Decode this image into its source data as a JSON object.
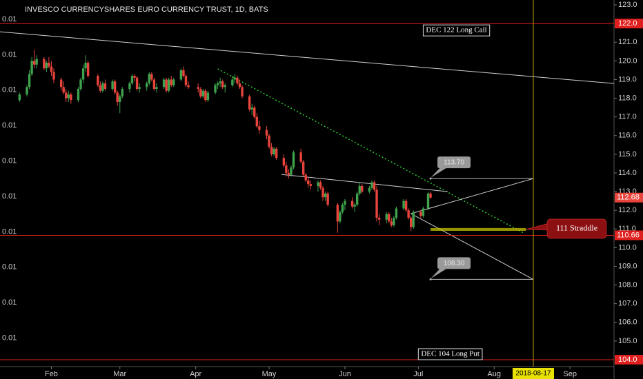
{
  "chart_data": {
    "type": "candlestick",
    "title": "INVESCO CURRENCYSHARES EURO CURRENCY TRUST, 1D, BATS",
    "xlim": [
      "2018-01-11",
      "2018-09-19"
    ],
    "ylim": [
      103.63,
      123.26
    ],
    "xticks": [
      {
        "value": "2018-02-01",
        "label": "Feb"
      },
      {
        "value": "2018-03-01",
        "label": "Mar"
      },
      {
        "value": "2018-04-01",
        "label": "Apr"
      },
      {
        "value": "2018-05-01",
        "label": "May"
      },
      {
        "value": "2018-06-01",
        "label": "Jun"
      },
      {
        "value": "2018-07-01",
        "label": "Jul"
      },
      {
        "value": "2018-08-01",
        "label": "Aug"
      },
      {
        "value": "2018-09-01",
        "label": "Sep"
      }
    ],
    "yticks": [
      {
        "value": 105,
        "label": "105.0"
      },
      {
        "value": 106,
        "label": "106.0"
      },
      {
        "value": 107,
        "label": "107.0"
      },
      {
        "value": 108,
        "label": "108.0"
      },
      {
        "value": 109,
        "label": "109.0"
      },
      {
        "value": 110,
        "label": "110.0"
      },
      {
        "value": 111,
        "label": "111.0"
      },
      {
        "value": 112,
        "label": "112.0"
      },
      {
        "value": 113,
        "label": "113.0"
      },
      {
        "value": 114,
        "label": "114.0"
      },
      {
        "value": 115,
        "label": "115.0"
      },
      {
        "value": 116,
        "label": "116.0"
      },
      {
        "value": 117,
        "label": "117.0"
      },
      {
        "value": 118,
        "label": "118.0"
      },
      {
        "value": 119,
        "label": "119.0"
      },
      {
        "value": 120,
        "label": "120.0"
      },
      {
        "value": 121,
        "label": "121.0"
      },
      {
        "value": 123,
        "label": "123.0"
      }
    ],
    "left_axis_labels": [
      "0.01",
      "0.01",
      "0.01",
      "0.01",
      "0.01",
      "0.01",
      "0.01",
      "0.01",
      "0.01",
      "0.01"
    ],
    "up_color": "#3fa34d",
    "down_color": "#e8443c",
    "x": [
      "2018-01-19",
      "2018-01-22",
      "2018-01-23",
      "2018-01-24",
      "2018-01-25",
      "2018-01-26",
      "2018-01-29",
      "2018-01-30",
      "2018-01-31",
      "2018-02-01",
      "2018-02-02",
      "2018-02-05",
      "2018-02-06",
      "2018-02-07",
      "2018-02-08",
      "2018-02-09",
      "2018-02-12",
      "2018-02-13",
      "2018-02-14",
      "2018-02-15",
      "2018-02-16",
      "2018-02-20",
      "2018-02-21",
      "2018-02-22",
      "2018-02-23",
      "2018-02-26",
      "2018-02-27",
      "2018-02-28",
      "2018-03-01",
      "2018-03-02",
      "2018-03-05",
      "2018-03-06",
      "2018-03-07",
      "2018-03-08",
      "2018-03-09",
      "2018-03-12",
      "2018-03-13",
      "2018-03-14",
      "2018-03-15",
      "2018-03-16",
      "2018-03-19",
      "2018-03-20",
      "2018-03-21",
      "2018-03-22",
      "2018-03-23",
      "2018-03-26",
      "2018-03-27",
      "2018-03-28",
      "2018-03-29",
      "2018-04-02",
      "2018-04-03",
      "2018-04-04",
      "2018-04-05",
      "2018-04-06",
      "2018-04-09",
      "2018-04-10",
      "2018-04-11",
      "2018-04-12",
      "2018-04-13",
      "2018-04-16",
      "2018-04-17",
      "2018-04-18",
      "2018-04-19",
      "2018-04-20",
      "2018-04-23",
      "2018-04-24",
      "2018-04-25",
      "2018-04-26",
      "2018-04-27",
      "2018-04-30",
      "2018-05-01",
      "2018-05-02",
      "2018-05-03",
      "2018-05-04",
      "2018-05-07",
      "2018-05-08",
      "2018-05-09",
      "2018-05-10",
      "2018-05-11",
      "2018-05-14",
      "2018-05-15",
      "2018-05-16",
      "2018-05-17",
      "2018-05-18",
      "2018-05-21",
      "2018-05-22",
      "2018-05-23",
      "2018-05-24",
      "2018-05-25",
      "2018-05-29",
      "2018-05-30",
      "2018-05-31",
      "2018-06-01",
      "2018-06-04",
      "2018-06-05",
      "2018-06-06",
      "2018-06-07",
      "2018-06-08",
      "2018-06-11",
      "2018-06-12",
      "2018-06-13",
      "2018-06-14",
      "2018-06-15",
      "2018-06-18",
      "2018-06-19",
      "2018-06-20",
      "2018-06-21",
      "2018-06-22",
      "2018-06-25",
      "2018-06-26",
      "2018-06-27",
      "2018-06-28",
      "2018-06-29",
      "2018-07-02",
      "2018-07-03",
      "2018-07-05",
      "2018-07-06"
    ],
    "ohlc": [
      [
        117.9,
        118.3,
        117.8,
        118.2
      ],
      [
        118.2,
        118.7,
        118.1,
        118.6
      ],
      [
        118.6,
        119.5,
        118.5,
        119.3
      ],
      [
        119.3,
        120.2,
        119.2,
        120.0
      ],
      [
        120.0,
        120.6,
        119.6,
        119.8
      ],
      [
        119.8,
        120.3,
        119.6,
        120.1
      ],
      [
        120.1,
        120.2,
        119.5,
        119.6
      ],
      [
        119.6,
        120.0,
        119.4,
        119.9
      ],
      [
        119.9,
        120.2,
        119.6,
        119.7
      ],
      [
        119.7,
        120.0,
        119.2,
        119.4
      ],
      [
        119.4,
        119.6,
        118.8,
        119.0
      ],
      [
        119.0,
        119.1,
        118.4,
        118.6
      ],
      [
        118.6,
        118.9,
        118.2,
        118.3
      ],
      [
        118.3,
        118.5,
        117.8,
        118.0
      ],
      [
        118.0,
        118.4,
        117.8,
        118.2
      ],
      [
        118.2,
        118.3,
        117.7,
        117.9
      ],
      [
        117.9,
        118.6,
        117.8,
        118.5
      ],
      [
        118.5,
        119.1,
        118.4,
        119.0
      ],
      [
        119.0,
        119.8,
        118.8,
        119.6
      ],
      [
        119.6,
        120.3,
        119.4,
        119.9
      ],
      [
        119.9,
        120.0,
        119.1,
        119.2
      ],
      [
        119.2,
        119.3,
        118.6,
        118.7
      ],
      [
        118.7,
        118.9,
        118.3,
        118.4
      ],
      [
        118.4,
        118.9,
        118.3,
        118.8
      ],
      [
        118.8,
        119.0,
        118.4,
        118.5
      ],
      [
        118.5,
        119.0,
        118.4,
        118.9
      ],
      [
        118.9,
        119.0,
        118.2,
        118.3
      ],
      [
        118.3,
        118.4,
        117.6,
        117.8
      ],
      [
        117.8,
        118.2,
        117.2,
        118.1
      ],
      [
        118.1,
        118.6,
        118.0,
        118.5
      ],
      [
        118.5,
        118.9,
        118.3,
        118.8
      ],
      [
        118.8,
        119.3,
        118.7,
        119.2
      ],
      [
        119.2,
        119.3,
        118.9,
        119.1
      ],
      [
        119.1,
        119.2,
        118.4,
        118.5
      ],
      [
        118.5,
        118.8,
        118.3,
        118.6
      ],
      [
        118.6,
        118.9,
        118.4,
        118.8
      ],
      [
        118.8,
        119.4,
        118.7,
        119.3
      ],
      [
        119.3,
        119.4,
        118.9,
        119.0
      ],
      [
        119.0,
        119.1,
        118.4,
        118.5
      ],
      [
        118.5,
        118.8,
        118.3,
        118.6
      ],
      [
        118.6,
        119.1,
        118.5,
        119.0
      ],
      [
        119.0,
        119.1,
        118.3,
        118.4
      ],
      [
        118.4,
        119.1,
        118.3,
        119.0
      ],
      [
        119.0,
        119.2,
        118.6,
        118.7
      ],
      [
        118.7,
        119.1,
        118.6,
        119.0
      ],
      [
        119.0,
        119.6,
        118.9,
        119.5
      ],
      [
        119.5,
        119.7,
        119.1,
        119.2
      ],
      [
        119.2,
        119.3,
        118.6,
        118.7
      ],
      [
        118.7,
        118.9,
        118.5,
        118.6
      ],
      [
        118.6,
        118.8,
        118.3,
        118.5
      ],
      [
        118.5,
        118.6,
        118.0,
        118.1
      ],
      [
        118.1,
        118.5,
        118.0,
        118.4
      ],
      [
        118.4,
        118.5,
        117.8,
        117.9
      ],
      [
        117.9,
        118.4,
        117.8,
        118.3
      ],
      [
        118.3,
        118.8,
        118.2,
        118.7
      ],
      [
        118.7,
        118.9,
        118.5,
        118.8
      ],
      [
        118.8,
        119.1,
        118.6,
        118.9
      ],
      [
        118.9,
        119.0,
        118.5,
        118.6
      ],
      [
        118.6,
        118.8,
        118.3,
        118.7
      ],
      [
        118.7,
        119.2,
        118.6,
        119.0
      ],
      [
        119.0,
        119.3,
        118.8,
        119.1
      ],
      [
        119.1,
        119.2,
        118.7,
        118.8
      ],
      [
        118.8,
        119.0,
        118.5,
        118.6
      ],
      [
        118.6,
        118.7,
        118.0,
        118.1
      ],
      [
        118.1,
        118.2,
        117.3,
        117.4
      ],
      [
        117.4,
        117.7,
        117.1,
        117.5
      ],
      [
        117.5,
        117.6,
        116.9,
        117.0
      ],
      [
        117.0,
        117.2,
        116.4,
        116.5
      ],
      [
        116.5,
        116.8,
        116.1,
        116.3
      ],
      [
        116.3,
        116.5,
        115.8,
        116.0
      ],
      [
        116.0,
        116.1,
        115.3,
        115.4
      ],
      [
        115.4,
        115.6,
        114.9,
        115.0
      ],
      [
        115.0,
        115.4,
        114.9,
        115.3
      ],
      [
        115.3,
        115.4,
        114.7,
        114.8
      ],
      [
        114.8,
        115.0,
        114.3,
        114.4
      ],
      [
        114.4,
        114.6,
        113.8,
        114.0
      ],
      [
        114.0,
        114.2,
        113.7,
        113.9
      ],
      [
        113.9,
        114.4,
        113.8,
        114.3
      ],
      [
        114.3,
        115.2,
        114.2,
        115.1
      ],
      [
        115.1,
        115.3,
        114.5,
        114.6
      ],
      [
        114.6,
        114.7,
        113.8,
        113.9
      ],
      [
        113.9,
        114.0,
        113.5,
        113.6
      ],
      [
        113.6,
        113.8,
        113.2,
        113.4
      ],
      [
        113.4,
        113.6,
        113.1,
        113.3
      ],
      [
        113.3,
        113.6,
        113.0,
        113.5
      ],
      [
        113.5,
        113.6,
        113.1,
        113.2
      ],
      [
        113.2,
        113.3,
        112.5,
        112.7
      ],
      [
        112.7,
        113.0,
        112.5,
        112.9
      ],
      [
        112.9,
        113.0,
        112.2,
        112.3
      ],
      [
        112.3,
        112.4,
        110.8,
        111.4
      ],
      [
        111.4,
        112.0,
        111.3,
        111.9
      ],
      [
        111.9,
        112.4,
        111.8,
        112.3
      ],
      [
        112.3,
        112.6,
        112.0,
        112.5
      ],
      [
        112.5,
        112.7,
        112.1,
        112.2
      ],
      [
        112.2,
        112.4,
        111.9,
        112.3
      ],
      [
        112.3,
        113.0,
        112.2,
        112.9
      ],
      [
        112.9,
        113.5,
        112.8,
        113.3
      ],
      [
        113.3,
        113.4,
        112.9,
        113.0
      ],
      [
        113.0,
        113.3,
        112.9,
        113.2
      ],
      [
        113.2,
        113.6,
        113.1,
        113.5
      ],
      [
        113.5,
        113.6,
        113.0,
        113.1
      ],
      [
        113.1,
        113.3,
        111.4,
        111.6
      ],
      [
        111.6,
        111.8,
        111.2,
        111.5
      ],
      [
        111.5,
        111.9,
        111.3,
        111.8
      ],
      [
        111.8,
        111.9,
        111.3,
        111.4
      ],
      [
        111.4,
        111.6,
        111.1,
        111.2
      ],
      [
        111.2,
        111.7,
        111.1,
        111.6
      ],
      [
        111.6,
        112.2,
        111.5,
        112.1
      ],
      [
        112.1,
        112.6,
        112.0,
        112.5
      ],
      [
        112.5,
        112.6,
        111.9,
        112.0
      ],
      [
        112.0,
        112.1,
        111.5,
        111.6
      ],
      [
        111.6,
        111.7,
        110.9,
        111.1
      ],
      [
        111.1,
        112.0,
        111.0,
        111.9
      ],
      [
        111.9,
        112.0,
        111.6,
        111.7
      ],
      [
        111.7,
        112.2,
        111.6,
        112.1
      ],
      [
        112.1,
        113.0,
        112.0,
        112.9
      ],
      [
        112.9,
        113.0,
        112.6,
        112.68
      ]
    ],
    "last_price": 112.68,
    "last_price_color": "#e8443c",
    "horizontal_lines": [
      {
        "value": 122,
        "label": "122.0",
        "color": "#e0201e"
      },
      {
        "value": 110.66,
        "color": "#e0201e"
      },
      {
        "value": 104,
        "label": "104.0",
        "color": "#e0201e"
      }
    ],
    "horizontal_line_value_label": "110.66",
    "vertical_line": {
      "x": "2018-08-17",
      "label": "2018-08-17",
      "color": "#b5a300"
    },
    "trend_lines": [
      {
        "x": [
          "2018-01-11",
          "2018-09-19"
        ],
        "y": [
          121.56,
          118.79
        ],
        "color": "#d0d0d0",
        "style": "solid"
      },
      {
        "x": [
          "2018-04-10",
          "2018-08-13"
        ],
        "y": [
          119.57,
          110.79
        ],
        "color": "#2ecc2e",
        "style": "dotted"
      },
      {
        "x": [
          "2018-05-06",
          "2018-07-13"
        ],
        "y": [
          113.92,
          113.0
        ],
        "color": "#d0d0d0",
        "style": "solid"
      },
      {
        "x": [
          "2018-06-28",
          "2018-08-17"
        ],
        "y": [
          111.82,
          113.7
        ],
        "color": "#d0d0d0",
        "style": "solid"
      },
      {
        "x": [
          "2018-06-28",
          "2018-08-17"
        ],
        "y": [
          111.82,
          108.3
        ],
        "color": "#d0d0d0",
        "style": "solid"
      }
    ],
    "price_labels": [
      {
        "value": 113.7,
        "label": "113.70",
        "x": [
          "2018-07-06",
          "2018-08-17"
        ]
      },
      {
        "value": 108.3,
        "label": "108.30",
        "x": [
          "2018-07-06",
          "2018-08-17"
        ]
      }
    ],
    "straddle": {
      "text": "111 Straddle",
      "band": [
        110.9,
        111.05
      ],
      "x": [
        "2018-07-06",
        "2018-08-14"
      ],
      "color": "#c8c400"
    },
    "option_notes": [
      {
        "text": "DEC 122 Long Call",
        "value": 122,
        "x": "2018-07-03"
      },
      {
        "text": "DEC 104 Long Put",
        "value": 104,
        "x": "2018-07-01"
      }
    ]
  }
}
